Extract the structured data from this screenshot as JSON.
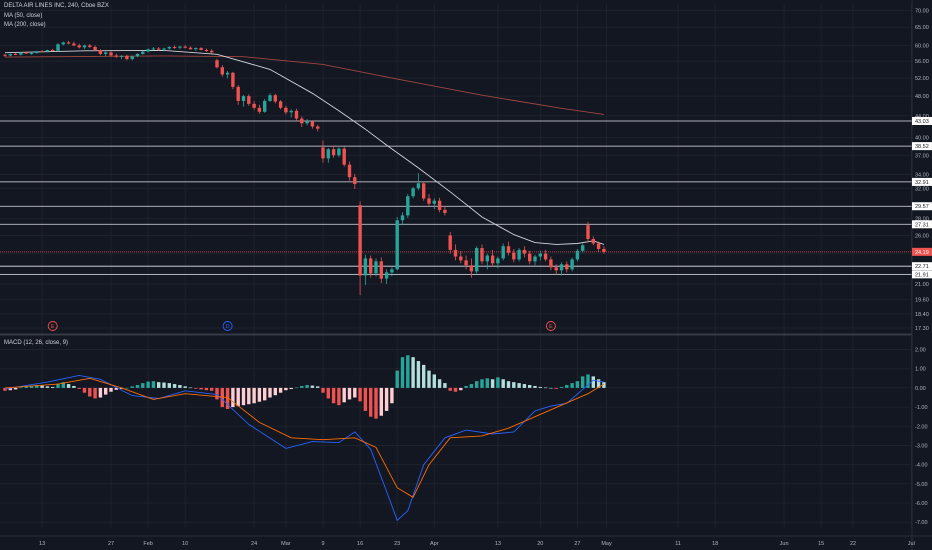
{
  "legend": {
    "symbol": "DELTA AIR LINES INC, 240, Cboe BZX",
    "ma50": "MA (50, close)",
    "ma200": "MA (200, close)",
    "macd": "MACD (12, 26, close, 9)"
  },
  "chart_data": [
    {
      "type": "candlestick",
      "panel": "price",
      "y_scale": "log",
      "ylim": [
        17.0,
        72.0
      ],
      "y_ticks": [
        "70.00",
        "65.00",
        "60.00",
        "56.00",
        "52.00",
        "48.00",
        "44.00",
        "40.00",
        "37.00",
        "34.00",
        "32.00",
        "28.00",
        "26.00",
        "24.00",
        "22.00",
        "21.00",
        "19.60",
        "18.40",
        "17.30"
      ],
      "x_ticks": [
        "13",
        "27",
        "Feb",
        "10",
        "24",
        "Mar",
        "9",
        "16",
        "23",
        "Apr",
        "13",
        "20",
        "27",
        "May",
        "11",
        "18",
        "Jun",
        "15",
        "22",
        "Jul"
      ],
      "horizontal_lines": [
        "43.03",
        "38.52",
        "32.91",
        "29.57",
        "27.31",
        "22.71",
        "21.91"
      ],
      "last_price": "24.19",
      "last_price_color": "#ef5350",
      "up_color": "#26a69a",
      "down_color": "#ef5350",
      "earnings_markers": [
        {
          "label": "E",
          "color": "#ef5350"
        },
        {
          "label": "D",
          "color": "#2962ff"
        },
        {
          "label": "E",
          "color": "#ef5350"
        }
      ],
      "candles": [
        [
          57.6,
          57.8,
          57.0,
          57.4
        ],
        [
          57.4,
          57.9,
          57.2,
          57.8
        ],
        [
          57.8,
          58.1,
          57.5,
          57.6
        ],
        [
          57.6,
          58.3,
          57.4,
          58.2
        ],
        [
          58.2,
          58.4,
          57.8,
          57.9
        ],
        [
          57.9,
          58.2,
          57.6,
          58.0
        ],
        [
          58.0,
          58.6,
          57.9,
          58.5
        ],
        [
          58.5,
          58.8,
          58.2,
          58.4
        ],
        [
          58.4,
          58.9,
          58.2,
          58.8
        ],
        [
          58.8,
          59.1,
          58.5,
          58.6
        ],
        [
          58.6,
          60.6,
          58.4,
          60.3
        ],
        [
          60.3,
          61.0,
          60.0,
          60.8
        ],
        [
          60.8,
          61.2,
          60.3,
          60.5
        ],
        [
          60.5,
          61.0,
          59.8,
          60.0
        ],
        [
          60.0,
          60.5,
          59.2,
          59.5
        ],
        [
          59.5,
          60.2,
          59.0,
          60.0
        ],
        [
          60.0,
          60.4,
          59.3,
          59.6
        ],
        [
          59.6,
          60.0,
          58.5,
          58.8
        ],
        [
          58.8,
          59.0,
          57.5,
          57.8
        ],
        [
          57.8,
          58.4,
          57.2,
          58.2
        ],
        [
          58.2,
          58.5,
          57.1,
          57.4
        ],
        [
          57.4,
          57.9,
          56.8,
          57.1
        ],
        [
          57.1,
          57.5,
          56.5,
          57.3
        ],
        [
          57.3,
          57.6,
          56.2,
          56.5
        ],
        [
          56.5,
          57.4,
          56.2,
          57.2
        ],
        [
          57.2,
          58.0,
          57.0,
          57.8
        ],
        [
          57.8,
          58.6,
          57.6,
          58.4
        ],
        [
          58.4,
          59.2,
          58.2,
          59.0
        ],
        [
          59.0,
          59.6,
          58.8,
          59.2
        ],
        [
          59.2,
          59.6,
          58.6,
          58.9
        ],
        [
          58.9,
          59.4,
          58.5,
          59.2
        ],
        [
          59.2,
          59.8,
          58.9,
          59.6
        ],
        [
          59.6,
          60.0,
          59.1,
          59.4
        ],
        [
          59.4,
          59.9,
          59.0,
          59.7
        ],
        [
          59.7,
          60.1,
          59.2,
          59.4
        ],
        [
          59.4,
          59.8,
          58.9,
          59.0
        ],
        [
          59.0,
          59.5,
          58.6,
          59.3
        ],
        [
          59.3,
          59.6,
          58.7,
          58.8
        ],
        [
          58.8,
          59.2,
          58.3,
          58.6
        ],
        [
          58.6,
          59.0,
          57.9,
          58.2
        ],
        [
          56.2,
          56.6,
          54.2,
          54.5
        ],
        [
          54.5,
          55.0,
          52.3,
          52.8
        ],
        [
          52.8,
          53.6,
          51.9,
          53.2
        ],
        [
          53.2,
          53.4,
          49.5,
          50.0
        ],
        [
          50.0,
          50.4,
          46.2,
          47.0
        ],
        [
          47.0,
          48.3,
          45.8,
          48.0
        ],
        [
          48.0,
          48.4,
          46.0,
          46.4
        ],
        [
          46.4,
          47.0,
          45.2,
          45.6
        ],
        [
          45.6,
          46.2,
          44.4,
          44.8
        ],
        [
          44.8,
          47.4,
          44.6,
          47.0
        ],
        [
          47.0,
          48.6,
          46.8,
          48.2
        ],
        [
          48.2,
          48.5,
          46.5,
          46.9
        ],
        [
          46.9,
          47.2,
          45.3,
          45.6
        ],
        [
          45.6,
          46.0,
          44.3,
          44.7
        ],
        [
          44.7,
          45.3,
          43.7,
          45.0
        ],
        [
          45.0,
          45.4,
          43.0,
          43.5
        ],
        [
          43.5,
          43.9,
          41.9,
          42.6
        ],
        [
          42.6,
          43.4,
          42.2,
          42.9
        ],
        [
          42.9,
          43.2,
          41.6,
          42.0
        ],
        [
          42.0,
          42.3,
          41.1,
          41.6
        ],
        [
          38.3,
          39.5,
          35.8,
          36.5
        ],
        [
          36.5,
          38.2,
          35.8,
          38.0
        ],
        [
          38.0,
          38.6,
          36.6,
          37.0
        ],
        [
          37.0,
          38.3,
          36.7,
          38.1
        ],
        [
          38.1,
          38.4,
          35.2,
          35.5
        ],
        [
          35.5,
          36.0,
          33.1,
          33.6
        ],
        [
          33.6,
          34.1,
          31.9,
          32.6
        ],
        [
          29.7,
          30.2,
          20.0,
          21.8
        ],
        [
          21.8,
          23.9,
          20.9,
          23.5
        ],
        [
          23.5,
          23.8,
          21.6,
          22.0
        ],
        [
          22.0,
          23.5,
          21.7,
          23.2
        ],
        [
          23.2,
          23.6,
          21.1,
          21.5
        ],
        [
          21.5,
          22.4,
          21.0,
          22.1
        ],
        [
          22.1,
          22.6,
          21.7,
          22.4
        ],
        [
          22.4,
          28.2,
          22.3,
          27.8
        ],
        [
          27.8,
          28.8,
          27.2,
          28.4
        ],
        [
          28.4,
          31.2,
          28.1,
          30.9
        ],
        [
          30.9,
          32.2,
          30.6,
          32.0
        ],
        [
          32.0,
          34.2,
          31.7,
          32.7
        ],
        [
          32.7,
          33.0,
          30.3,
          30.6
        ],
        [
          30.6,
          31.2,
          29.6,
          29.9
        ],
        [
          29.9,
          30.6,
          29.2,
          30.3
        ],
        [
          30.3,
          30.7,
          28.8,
          29.1
        ],
        [
          29.1,
          29.6,
          28.4,
          28.7
        ],
        [
          26.0,
          26.4,
          24.0,
          24.4
        ],
        [
          24.4,
          25.0,
          23.3,
          23.7
        ],
        [
          23.7,
          24.3,
          23.0,
          23.3
        ],
        [
          23.3,
          23.8,
          22.4,
          22.8
        ],
        [
          22.8,
          23.5,
          21.6,
          22.2
        ],
        [
          22.2,
          24.8,
          22.0,
          24.6
        ],
        [
          24.6,
          25.0,
          22.9,
          23.2
        ],
        [
          23.2,
          24.0,
          22.4,
          23.8
        ],
        [
          23.8,
          24.4,
          22.7,
          23.0
        ],
        [
          23.0,
          23.7,
          22.5,
          23.5
        ],
        [
          23.5,
          25.1,
          23.3,
          24.8
        ],
        [
          24.8,
          25.3,
          23.8,
          24.1
        ],
        [
          24.1,
          24.5,
          23.1,
          23.4
        ],
        [
          23.4,
          24.6,
          23.2,
          24.4
        ],
        [
          24.4,
          24.8,
          23.6,
          24.0
        ],
        [
          24.0,
          24.3,
          22.9,
          23.2
        ],
        [
          23.2,
          23.9,
          22.8,
          23.7
        ],
        [
          23.7,
          24.3,
          23.3,
          24.0
        ],
        [
          24.0,
          24.4,
          23.2,
          23.4
        ],
        [
          23.4,
          23.7,
          22.3,
          22.6
        ],
        [
          22.6,
          22.9,
          21.9,
          22.3
        ],
        [
          22.3,
          23.1,
          21.8,
          22.9
        ],
        [
          22.9,
          23.2,
          22.1,
          22.4
        ],
        [
          22.4,
          23.6,
          22.2,
          23.4
        ],
        [
          23.4,
          24.5,
          23.2,
          24.3
        ],
        [
          24.3,
          25.1,
          24.1,
          24.9
        ],
        [
          27.2,
          27.6,
          25.2,
          25.6
        ],
        [
          25.6,
          25.9,
          24.9,
          25.1
        ],
        [
          25.1,
          25.3,
          24.2,
          24.5
        ],
        [
          24.5,
          24.8,
          24.0,
          24.19
        ]
      ],
      "ma50": [
        [
          0,
          58.1
        ],
        [
          15,
          58.6
        ],
        [
          30,
          58.7
        ],
        [
          40,
          57.7
        ],
        [
          50,
          54.0
        ],
        [
          58,
          48.6
        ],
        [
          63,
          45.0
        ],
        [
          68,
          41.5
        ],
        [
          72,
          38.7
        ],
        [
          78,
          35.0
        ],
        [
          84,
          31.5
        ],
        [
          90,
          28.2
        ],
        [
          96,
          26.1
        ],
        [
          100,
          25.2
        ],
        [
          104,
          25.0
        ],
        [
          108,
          25.1
        ],
        [
          111,
          25.4
        ],
        [
          113,
          25.0
        ]
      ],
      "ma200": [
        [
          0,
          57.0
        ],
        [
          30,
          57.3
        ],
        [
          45,
          57.1
        ],
        [
          60,
          55.2
        ],
        [
          75,
          51.5
        ],
        [
          90,
          48.2
        ],
        [
          105,
          45.5
        ],
        [
          113,
          44.3
        ]
      ],
      "title": "",
      "xlabel": "",
      "ylabel": ""
    },
    {
      "type": "macd",
      "panel": "indicator",
      "ylim": [
        -7.3,
        2.6
      ],
      "y_ticks": [
        "2.00",
        "1.00",
        "0.00",
        "-1.00",
        "-2.00",
        "-3.00",
        "-4.00",
        "-5.00",
        "-6.00",
        "-7.00"
      ],
      "macd_color": "#2962ff",
      "signal_color": "#ff6d00",
      "macd_line": [
        [
          0,
          -0.05
        ],
        [
          8,
          0.3
        ],
        [
          14,
          0.65
        ],
        [
          18,
          0.45
        ],
        [
          24,
          -0.4
        ],
        [
          29,
          -0.55
        ],
        [
          34,
          -0.15
        ],
        [
          40,
          -0.35
        ],
        [
          46,
          -1.9
        ],
        [
          53,
          -3.15
        ],
        [
          58,
          -2.8
        ],
        [
          63,
          -2.85
        ],
        [
          66,
          -2.3
        ],
        [
          69,
          -3.2
        ],
        [
          72,
          -5.4
        ],
        [
          74,
          -6.9
        ],
        [
          76,
          -6.4
        ],
        [
          79,
          -4.0
        ],
        [
          83,
          -2.6
        ],
        [
          87,
          -2.2
        ],
        [
          92,
          -2.4
        ],
        [
          96,
          -2.3
        ],
        [
          100,
          -1.2
        ],
        [
          103,
          -0.95
        ],
        [
          106,
          -0.8
        ],
        [
          111,
          0.4
        ],
        [
          113,
          0.3
        ]
      ],
      "signal_line": [
        [
          0,
          0.0
        ],
        [
          10,
          0.2
        ],
        [
          16,
          0.5
        ],
        [
          22,
          0.0
        ],
        [
          28,
          -0.6
        ],
        [
          34,
          -0.3
        ],
        [
          42,
          -0.5
        ],
        [
          48,
          -1.8
        ],
        [
          54,
          -2.6
        ],
        [
          60,
          -2.7
        ],
        [
          66,
          -2.6
        ],
        [
          70,
          -3.1
        ],
        [
          74,
          -5.2
        ],
        [
          77,
          -5.7
        ],
        [
          80,
          -4.0
        ],
        [
          84,
          -2.6
        ],
        [
          90,
          -2.5
        ],
        [
          95,
          -2.1
        ],
        [
          100,
          -1.5
        ],
        [
          105,
          -0.9
        ],
        [
          110,
          -0.3
        ],
        [
          113,
          0.2
        ]
      ],
      "histogram": [
        -0.15,
        -0.12,
        -0.08,
        0.02,
        0.08,
        0.12,
        0.15,
        0.12,
        0.08,
        0.05,
        0.22,
        0.3,
        0.2,
        0.1,
        -0.05,
        -0.25,
        -0.45,
        -0.55,
        -0.5,
        -0.35,
        -0.2,
        -0.1,
        -0.05,
        0.0,
        0.08,
        0.15,
        0.25,
        0.33,
        0.35,
        0.3,
        0.28,
        0.25,
        0.2,
        0.15,
        0.08,
        0.02,
        -0.04,
        -0.08,
        -0.12,
        -0.15,
        -0.6,
        -1.0,
        -1.1,
        -1.0,
        -0.95,
        -0.9,
        -0.85,
        -0.8,
        -0.72,
        -0.65,
        -0.5,
        -0.38,
        -0.25,
        -0.12,
        -0.06,
        0.02,
        0.1,
        0.15,
        0.12,
        0.08,
        -0.25,
        -0.55,
        -0.8,
        -0.9,
        -0.75,
        -0.6,
        -0.5,
        -0.7,
        -1.2,
        -1.5,
        -1.6,
        -1.45,
        -1.2,
        -0.8,
        0.9,
        1.6,
        1.7,
        1.6,
        1.4,
        1.2,
        0.9,
        0.7,
        0.45,
        0.25,
        -0.15,
        -0.2,
        -0.12,
        0.1,
        0.2,
        0.35,
        0.45,
        0.5,
        0.45,
        0.55,
        0.45,
        0.35,
        0.3,
        0.25,
        0.2,
        0.15,
        0.1,
        0.05,
        0.02,
        0.0,
        -0.05,
        0.05,
        0.15,
        0.25,
        0.35,
        0.6,
        0.7,
        0.6,
        0.45,
        0.3
      ]
    }
  ]
}
